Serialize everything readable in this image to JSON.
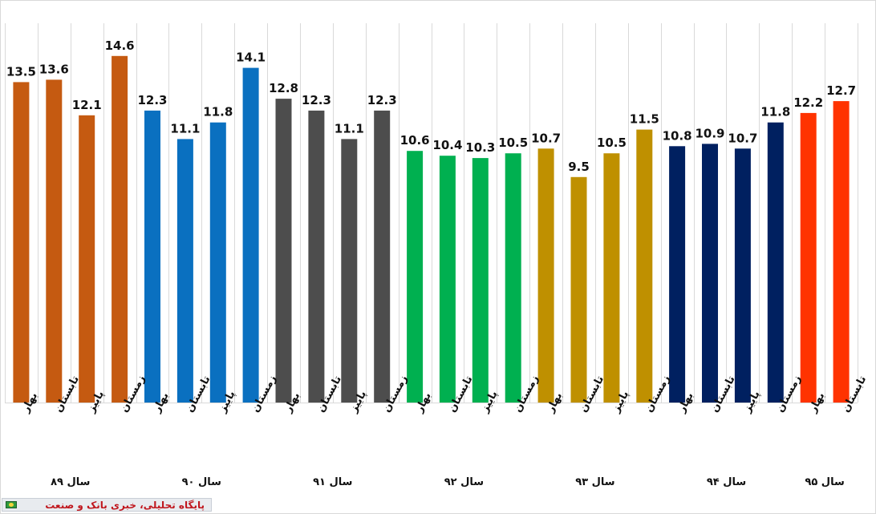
{
  "chart_data": {
    "type": "bar",
    "title": "",
    "xlabel": "",
    "ylabel": "",
    "ylim": [
      0,
      16
    ],
    "grid": "vertical",
    "legend": "none",
    "categories": [
      "بهار",
      "تابستان",
      "پاییز",
      "زمستان",
      "بهار",
      "تابستان",
      "پاییز",
      "زمستان",
      "بهار",
      "تابستان",
      "پاییز",
      "زمستان",
      "بهار",
      "تابستان",
      "پاییز",
      "زمستان",
      "بهار",
      "تابستان",
      "پاییز",
      "زمستان",
      "بهار",
      "تابستان",
      "پاییز",
      "زمستان",
      "بهار",
      "تابستان"
    ],
    "value_labels": [
      "13.5",
      "13.6",
      "12.1",
      "14.6",
      "12.3",
      "11.1",
      "11.8",
      "14.1",
      "12.8",
      "12.3",
      "11.1",
      "12.3",
      "10.6",
      "10.4",
      "10.3",
      "10.5",
      "10.7",
      "9.5",
      "10.5",
      "11.5",
      "10.8",
      "10.9",
      "10.7",
      "11.8",
      "12.2",
      "12.7"
    ],
    "values": [
      13.5,
      13.6,
      12.1,
      14.6,
      12.3,
      11.1,
      11.8,
      14.1,
      12.8,
      12.3,
      11.1,
      12.3,
      10.6,
      10.4,
      10.3,
      10.5,
      10.7,
      9.5,
      10.5,
      11.5,
      10.8,
      10.9,
      10.7,
      11.8,
      12.2,
      12.7
    ],
    "groups": [
      {
        "label": "سال ۸۹",
        "count": 4,
        "color": "#c55a11"
      },
      {
        "label": "سال ۹۰",
        "count": 4,
        "color": "#0a70c0"
      },
      {
        "label": "سال ۹۱",
        "count": 4,
        "color": "#4d4d4d"
      },
      {
        "label": "سال ۹۲",
        "count": 4,
        "color": "#00b050"
      },
      {
        "label": "سال ۹۳",
        "count": 4,
        "color": "#bf9000"
      },
      {
        "label": "سال ۹۴",
        "count": 4,
        "color": "#002060"
      },
      {
        "label": "سال ۹۵",
        "count": 2,
        "color": "#ff3300"
      }
    ]
  },
  "footer": {
    "text": "پایگاه تحلیلی، خبری بانک و صنعت"
  },
  "colors": {
    "grid": "#d9d9d9",
    "footer_text": "#c0171e"
  }
}
